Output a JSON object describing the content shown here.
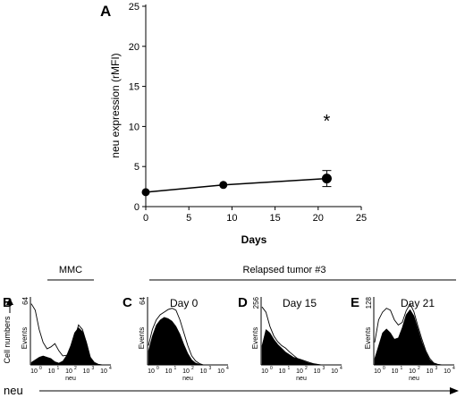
{
  "panel_labels": {
    "a": "A",
    "b": "B",
    "c": "C",
    "d": "D",
    "e": "E"
  },
  "chart_data": [
    {
      "type": "line",
      "panel": "A",
      "xlabel": "Days",
      "ylabel": "neu expression (rMFI)",
      "xlim": [
        0,
        25
      ],
      "ylim": [
        0,
        25
      ],
      "xticks": [
        0,
        5,
        10,
        15,
        20,
        25
      ],
      "yticks": [
        0,
        5,
        10,
        15,
        20,
        25
      ],
      "series": [
        {
          "x": [
            0,
            9,
            21
          ],
          "y": [
            1.8,
            2.7,
            3.5
          ],
          "yerr": [
            0,
            0,
            1.0
          ]
        }
      ],
      "annotation": {
        "text": "*",
        "x": 21,
        "y": 10.8
      }
    },
    {
      "type": "area",
      "panel": "B",
      "group_label": "MMC",
      "ymax_label": "64",
      "ylabel": "Events",
      "xlabel": "neu",
      "xtick_labels": [
        "10",
        "10",
        "10",
        "10",
        "10"
      ],
      "xtick_exponents": [
        "0",
        "1",
        "2",
        "3",
        "4"
      ]
    },
    {
      "type": "area",
      "panel": "C",
      "group_label": "Relapsed tumor #3",
      "title": "Day 0",
      "ymax_label": "64",
      "ylabel": "Events",
      "xlabel": "neu",
      "xtick_labels": [
        "10",
        "10",
        "10",
        "10",
        "10"
      ],
      "xtick_exponents": [
        "0",
        "1",
        "2",
        "3",
        "4"
      ]
    },
    {
      "type": "area",
      "panel": "D",
      "title": "Day 15",
      "ymax_label": "256",
      "ylabel": "Events",
      "xlabel": "neu",
      "xtick_labels": [
        "10",
        "10",
        "10",
        "10",
        "10"
      ],
      "xtick_exponents": [
        "0",
        "1",
        "2",
        "3",
        "4"
      ]
    },
    {
      "type": "area",
      "panel": "E",
      "title": "Day 21",
      "ymax_label": "128",
      "ylabel": "Events",
      "xlabel": "neu",
      "xtick_labels": [
        "10",
        "10",
        "10",
        "10",
        "10"
      ],
      "xtick_exponents": [
        "0",
        "1",
        "2",
        "3",
        "4"
      ]
    }
  ],
  "figure_axes": {
    "y_label": "Cell numbers",
    "x_label": "neu"
  }
}
